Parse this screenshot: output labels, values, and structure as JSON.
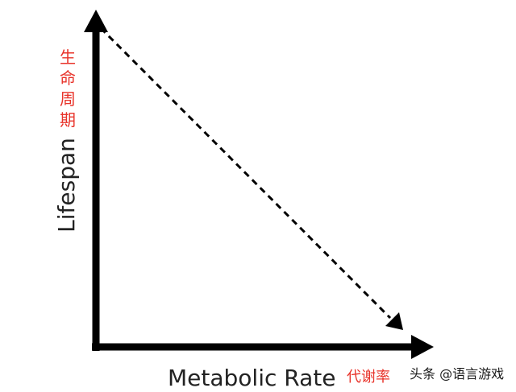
{
  "diagram": {
    "y_axis": {
      "label": "Lifespan",
      "label_cn": [
        "生",
        "命",
        "周",
        "期"
      ]
    },
    "x_axis": {
      "label": "Metabolic Rate",
      "label_cn": "代谢率"
    },
    "trend": {
      "style": "dashed",
      "direction": "decreasing"
    },
    "colors": {
      "axis": "#000000",
      "english_label": "#222222",
      "chinese_label": "#e8332a"
    }
  },
  "watermark": {
    "text": "头条 @语言游戏"
  }
}
